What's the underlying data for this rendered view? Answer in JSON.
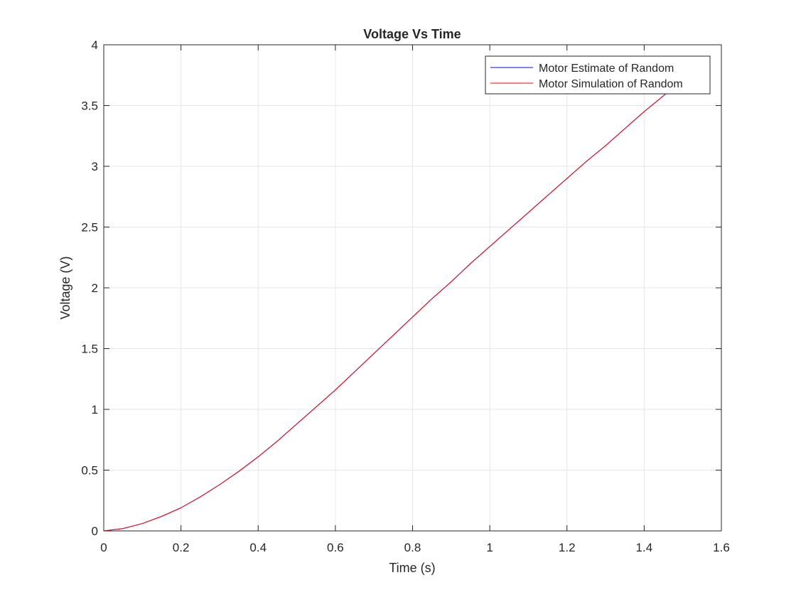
{
  "chart_data": {
    "type": "line",
    "title": "Voltage Vs Time",
    "xlabel": "Time (s)",
    "ylabel": "Voltage (V)",
    "xlim": [
      0,
      1.6
    ],
    "ylim": [
      0,
      4
    ],
    "xticks": [
      0,
      0.2,
      0.4,
      0.6,
      0.8,
      1,
      1.2,
      1.4,
      1.6
    ],
    "yticks": [
      0,
      0.5,
      1,
      1.5,
      2,
      2.5,
      3,
      3.5,
      4
    ],
    "xtick_labels": [
      "0",
      "0.2",
      "0.4",
      "0.6",
      "0.8",
      "1",
      "1.2",
      "1.4",
      "1.6"
    ],
    "ytick_labels": [
      "0",
      "0.5",
      "1",
      "1.5",
      "2",
      "2.5",
      "3",
      "3.5",
      "4"
    ],
    "grid": true,
    "legend_position": "top-right",
    "series": [
      {
        "name": "Motor Estimate of Random",
        "color": "#0000ff",
        "x": [
          0,
          0.05,
          0.1,
          0.15,
          0.2,
          0.25,
          0.3,
          0.35,
          0.4,
          0.45,
          0.5,
          0.55,
          0.6,
          0.65,
          0.7,
          0.75,
          0.8,
          0.85,
          0.9,
          0.95,
          1.0,
          1.05,
          1.1,
          1.15,
          1.2,
          1.25,
          1.3,
          1.35,
          1.4,
          1.45,
          1.5,
          1.51
        ],
        "y": [
          0.0,
          0.02,
          0.06,
          0.12,
          0.19,
          0.28,
          0.38,
          0.49,
          0.61,
          0.74,
          0.88,
          1.02,
          1.16,
          1.31,
          1.46,
          1.61,
          1.76,
          1.91,
          2.05,
          2.2,
          2.34,
          2.48,
          2.62,
          2.76,
          2.9,
          3.04,
          3.17,
          3.31,
          3.45,
          3.58,
          3.72,
          3.76
        ]
      },
      {
        "name": "Motor Simulation of Random",
        "color": "#ff0000",
        "x": [
          0,
          0.05,
          0.1,
          0.15,
          0.2,
          0.25,
          0.3,
          0.35,
          0.4,
          0.45,
          0.5,
          0.55,
          0.6,
          0.65,
          0.7,
          0.75,
          0.8,
          0.85,
          0.9,
          0.95,
          1.0,
          1.05,
          1.1,
          1.15,
          1.2,
          1.25,
          1.3,
          1.35,
          1.4,
          1.45,
          1.5,
          1.51
        ],
        "y": [
          0.0,
          0.02,
          0.06,
          0.12,
          0.19,
          0.28,
          0.38,
          0.49,
          0.61,
          0.74,
          0.88,
          1.02,
          1.16,
          1.31,
          1.46,
          1.61,
          1.76,
          1.91,
          2.05,
          2.2,
          2.34,
          2.48,
          2.62,
          2.76,
          2.9,
          3.04,
          3.17,
          3.31,
          3.45,
          3.58,
          3.72,
          3.76
        ]
      }
    ]
  }
}
